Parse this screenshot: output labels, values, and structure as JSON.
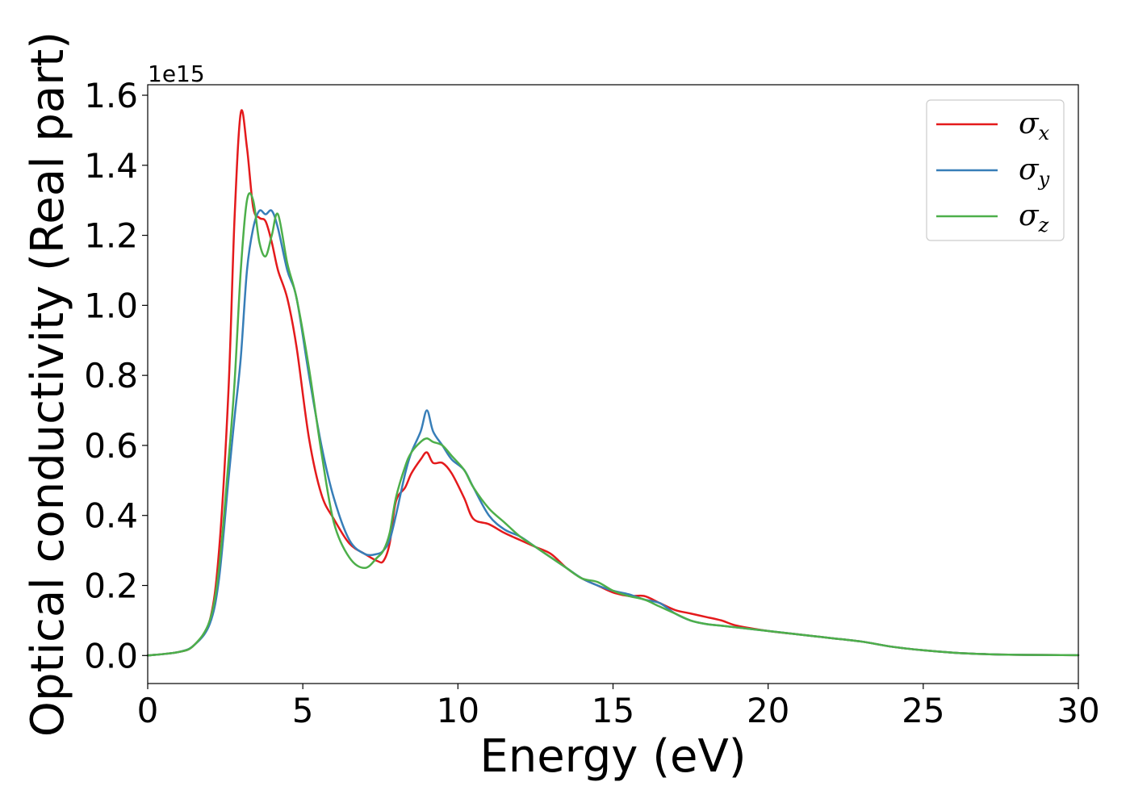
{
  "chart_data": {
    "type": "line",
    "xlabel": "Energy (eV)",
    "ylabel": "Optical conductivity (Real part)",
    "y_offset_label": "1e15",
    "xlim": [
      0,
      30
    ],
    "ylim": [
      -0.08,
      1.63
    ],
    "x_ticks": [
      0,
      5,
      10,
      15,
      20,
      25,
      30
    ],
    "x_tick_labels": [
      "0",
      "5",
      "10",
      "15",
      "20",
      "25",
      "30"
    ],
    "y_ticks": [
      0.0,
      0.2,
      0.4,
      0.6,
      0.8,
      1.0,
      1.2,
      1.4,
      1.6
    ],
    "y_tick_labels": [
      "0.0",
      "0.2",
      "0.4",
      "0.6",
      "0.8",
      "1.0",
      "1.2",
      "1.4",
      "1.6"
    ],
    "grid": false,
    "legend_position": "top-right",
    "series": [
      {
        "name": "σx",
        "legend_symbol": "σ",
        "legend_subscript": "x",
        "color": "#e41a1c",
        "x": [
          0,
          1,
          1.5,
          2,
          2.3,
          2.6,
          2.8,
          3.0,
          3.2,
          3.4,
          3.6,
          3.8,
          4.0,
          4.2,
          4.5,
          4.8,
          5.2,
          5.6,
          6.0,
          6.5,
          7.0,
          7.4,
          7.6,
          7.8,
          8.0,
          8.3,
          8.5,
          8.8,
          9.0,
          9.2,
          9.5,
          9.8,
          10.2,
          10.5,
          11.0,
          11.5,
          12.0,
          12.5,
          13.0,
          13.5,
          14.0,
          14.5,
          15.0,
          15.5,
          16.0,
          16.5,
          17.0,
          17.5,
          18.0,
          18.5,
          19.0,
          20.0,
          21.0,
          22.0,
          23.0,
          24.0,
          25.0,
          26.0,
          27.0,
          28.0,
          30.0
        ],
        "y": [
          0.0,
          0.01,
          0.03,
          0.1,
          0.3,
          0.75,
          1.25,
          1.55,
          1.45,
          1.28,
          1.25,
          1.24,
          1.18,
          1.1,
          1.02,
          0.88,
          0.62,
          0.46,
          0.39,
          0.32,
          0.29,
          0.27,
          0.27,
          0.32,
          0.44,
          0.48,
          0.52,
          0.56,
          0.58,
          0.55,
          0.55,
          0.52,
          0.45,
          0.39,
          0.375,
          0.35,
          0.33,
          0.31,
          0.29,
          0.25,
          0.22,
          0.2,
          0.18,
          0.17,
          0.17,
          0.15,
          0.13,
          0.12,
          0.11,
          0.1,
          0.085,
          0.07,
          0.06,
          0.05,
          0.04,
          0.025,
          0.015,
          0.008,
          0.004,
          0.002,
          0.001
        ]
      },
      {
        "name": "σy",
        "legend_symbol": "σ",
        "legend_subscript": "y",
        "color": "#377eb8",
        "x": [
          0,
          1,
          1.5,
          2,
          2.3,
          2.6,
          2.8,
          3.0,
          3.2,
          3.4,
          3.6,
          3.8,
          4.0,
          4.2,
          4.5,
          4.8,
          5.2,
          5.6,
          6.0,
          6.5,
          7.0,
          7.4,
          7.6,
          7.8,
          8.0,
          8.3,
          8.5,
          8.8,
          9.0,
          9.2,
          9.5,
          9.8,
          10.2,
          10.5,
          11.0,
          11.5,
          12.0,
          12.5,
          13.0,
          13.5,
          14.0,
          14.5,
          15.0,
          15.5,
          16.0,
          16.5,
          17.0,
          17.5,
          18.0,
          18.5,
          19.0,
          20.0,
          21.0,
          22.0,
          23.0,
          24.0,
          25.0,
          26.0,
          27.0,
          28.0,
          30.0
        ],
        "y": [
          0.0,
          0.01,
          0.03,
          0.09,
          0.22,
          0.5,
          0.68,
          0.85,
          1.1,
          1.22,
          1.27,
          1.26,
          1.27,
          1.22,
          1.1,
          1.02,
          0.8,
          0.6,
          0.45,
          0.33,
          0.29,
          0.29,
          0.3,
          0.33,
          0.4,
          0.52,
          0.58,
          0.64,
          0.7,
          0.64,
          0.6,
          0.56,
          0.53,
          0.48,
          0.4,
          0.36,
          0.34,
          0.31,
          0.28,
          0.25,
          0.22,
          0.2,
          0.185,
          0.175,
          0.16,
          0.15,
          0.12,
          0.1,
          0.09,
          0.085,
          0.08,
          0.07,
          0.06,
          0.05,
          0.04,
          0.025,
          0.015,
          0.008,
          0.004,
          0.002,
          0.001
        ]
      },
      {
        "name": "σz",
        "legend_symbol": "σ",
        "legend_subscript": "z",
        "color": "#4daf4a",
        "x": [
          0,
          1,
          1.5,
          2,
          2.3,
          2.6,
          2.8,
          3.0,
          3.2,
          3.4,
          3.6,
          3.8,
          4.0,
          4.2,
          4.5,
          4.8,
          5.2,
          5.6,
          6.0,
          6.5,
          7.0,
          7.4,
          7.6,
          7.8,
          8.0,
          8.3,
          8.5,
          8.8,
          9.0,
          9.2,
          9.5,
          9.8,
          10.2,
          10.5,
          11.0,
          11.5,
          12.0,
          12.5,
          13.0,
          13.5,
          14.0,
          14.5,
          15.0,
          15.5,
          16.0,
          16.5,
          17.0,
          17.5,
          18.0,
          18.5,
          19.0,
          20.0,
          21.0,
          22.0,
          23.0,
          24.0,
          25.0,
          26.0,
          27.0,
          28.0,
          30.0
        ],
        "y": [
          0.0,
          0.01,
          0.03,
          0.1,
          0.25,
          0.55,
          0.78,
          1.1,
          1.3,
          1.3,
          1.18,
          1.14,
          1.2,
          1.26,
          1.12,
          1.02,
          0.82,
          0.58,
          0.38,
          0.28,
          0.25,
          0.28,
          0.3,
          0.35,
          0.45,
          0.54,
          0.58,
          0.61,
          0.62,
          0.61,
          0.6,
          0.57,
          0.53,
          0.48,
          0.42,
          0.38,
          0.34,
          0.31,
          0.28,
          0.25,
          0.22,
          0.21,
          0.185,
          0.17,
          0.16,
          0.14,
          0.12,
          0.1,
          0.09,
          0.085,
          0.08,
          0.07,
          0.06,
          0.05,
          0.04,
          0.025,
          0.015,
          0.008,
          0.004,
          0.002,
          0.001
        ]
      }
    ]
  }
}
